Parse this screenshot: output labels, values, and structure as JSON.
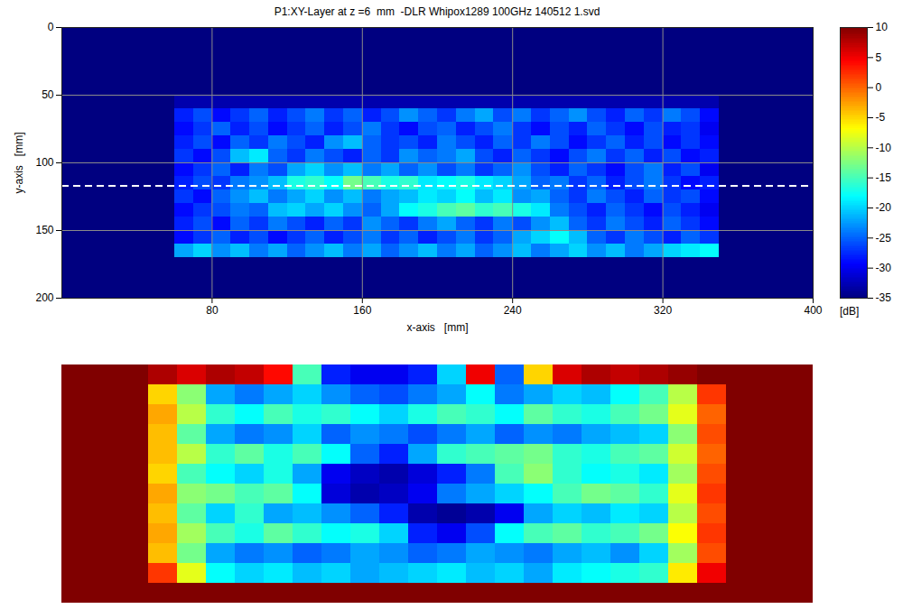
{
  "chart_data": [
    {
      "type": "heatmap",
      "title": "P1:XY-Layer at z =6  mm  -DLR Whipox1289 100GHz 140512 1.svd",
      "xlabel": "x-axis   [mm]",
      "ylabel": "y-axis   [mm]",
      "xlim": [
        0,
        400
      ],
      "ylim": [
        0,
        200
      ],
      "xticks": [
        80,
        160,
        240,
        320,
        400
      ],
      "yticks": [
        0,
        50,
        100,
        150,
        200
      ],
      "grid": true,
      "x_bins": [
        0,
        10,
        20,
        30,
        40,
        50,
        60,
        70,
        80,
        90,
        100,
        110,
        120,
        130,
        140,
        150,
        160,
        170,
        180,
        190,
        200,
        210,
        220,
        230,
        240,
        250,
        260,
        270,
        280,
        290,
        300,
        310,
        320,
        330,
        340,
        350,
        360,
        370,
        380,
        390,
        400
      ],
      "y_bins": [
        0,
        10,
        20,
        30,
        40,
        50,
        60,
        70,
        80,
        90,
        100,
        110,
        120,
        130,
        140,
        150,
        160,
        170,
        180,
        190,
        200
      ],
      "cells": [
        [
          -35,
          -35,
          -35,
          -35,
          -35,
          -35,
          -35,
          -35,
          -35,
          -35,
          -35,
          -35,
          -35,
          -35,
          -35,
          -35,
          -35,
          -35,
          -35,
          -35,
          -35,
          -35,
          -35,
          -35,
          -35,
          -35,
          -35,
          -35,
          -35,
          -35,
          -35,
          -35,
          -35,
          -35,
          -35,
          -35,
          -35,
          -35,
          -35,
          -35
        ],
        [
          -35,
          -35,
          -35,
          -35,
          -35,
          -35,
          -35,
          -35,
          -35,
          -35,
          -35,
          -35,
          -35,
          -35,
          -35,
          -35,
          -35,
          -35,
          -35,
          -35,
          -35,
          -35,
          -35,
          -35,
          -35,
          -35,
          -35,
          -35,
          -35,
          -35,
          -35,
          -35,
          -35,
          -35,
          -35,
          -35,
          -35,
          -35,
          -35,
          -35
        ],
        [
          -35,
          -35,
          -35,
          -35,
          -35,
          -35,
          -35,
          -35,
          -35,
          -35,
          -35,
          -35,
          -35,
          -35,
          -35,
          -35,
          -35,
          -35,
          -35,
          -35,
          -35,
          -35,
          -35,
          -35,
          -35,
          -35,
          -35,
          -35,
          -35,
          -35,
          -35,
          -35,
          -35,
          -35,
          -35,
          -35,
          -35,
          -35,
          -35,
          -35
        ],
        [
          -35,
          -35,
          -35,
          -35,
          -35,
          -35,
          -35,
          -35,
          -35,
          -35,
          -35,
          -35,
          -35,
          -35,
          -35,
          -35,
          -35,
          -35,
          -35,
          -35,
          -35,
          -35,
          -35,
          -35,
          -35,
          -35,
          -35,
          -35,
          -35,
          -35,
          -35,
          -35,
          -35,
          -35,
          -35,
          -35,
          -35,
          -35,
          -35,
          -35
        ],
        [
          -35,
          -35,
          -35,
          -35,
          -35,
          -35,
          -35,
          -35,
          -35,
          -35,
          -35,
          -35,
          -35,
          -35,
          -35,
          -35,
          -35,
          -35,
          -35,
          -35,
          -35,
          -35,
          -35,
          -35,
          -35,
          -35,
          -35,
          -35,
          -35,
          -35,
          -35,
          -35,
          -35,
          -35,
          -35,
          -35,
          -35,
          -35,
          -35,
          -35
        ],
        [
          -35,
          -35,
          -35,
          -35,
          -35,
          -35,
          -33,
          -33,
          -33,
          -33,
          -33,
          -33,
          -33,
          -33,
          -33,
          -33,
          -33,
          -33,
          -33,
          -33,
          -33,
          -33,
          -33,
          -33,
          -33,
          -33,
          -33,
          -33,
          -33,
          -33,
          -33,
          -33,
          -33,
          -33,
          -33,
          -35,
          -35,
          -35,
          -35,
          -35
        ],
        [
          -35,
          -35,
          -35,
          -35,
          -35,
          -35,
          -28,
          -26,
          -29,
          -27,
          -25,
          -28,
          -26,
          -24,
          -27,
          -25,
          -28,
          -26,
          -23,
          -25,
          -27,
          -24,
          -22,
          -26,
          -24,
          -27,
          -25,
          -23,
          -26,
          -28,
          -25,
          -27,
          -24,
          -26,
          -29,
          -35,
          -35,
          -35,
          -35,
          -35
        ],
        [
          -35,
          -35,
          -35,
          -35,
          -35,
          -35,
          -29,
          -27,
          -25,
          -28,
          -26,
          -29,
          -27,
          -25,
          -28,
          -26,
          -24,
          -27,
          -29,
          -26,
          -25,
          -28,
          -26,
          -24,
          -27,
          -29,
          -26,
          -28,
          -25,
          -27,
          -29,
          -26,
          -28,
          -27,
          -30,
          -35,
          -35,
          -35,
          -35,
          -35
        ],
        [
          -35,
          -35,
          -35,
          -35,
          -35,
          -35,
          -28,
          -26,
          -29,
          -25,
          -27,
          -24,
          -26,
          -28,
          -23,
          -21,
          -25,
          -27,
          -26,
          -28,
          -24,
          -26,
          -28,
          -25,
          -27,
          -24,
          -26,
          -29,
          -27,
          -25,
          -28,
          -26,
          -29,
          -27,
          -29,
          -35,
          -35,
          -35,
          -35,
          -35
        ],
        [
          -35,
          -35,
          -35,
          -35,
          -35,
          -35,
          -27,
          -29,
          -26,
          -21,
          -19,
          -25,
          -27,
          -24,
          -26,
          -28,
          -25,
          -27,
          -23,
          -25,
          -24,
          -22,
          -26,
          -28,
          -25,
          -27,
          -29,
          -26,
          -24,
          -27,
          -25,
          -28,
          -26,
          -29,
          -28,
          -35,
          -35,
          -35,
          -35,
          -35
        ],
        [
          -35,
          -35,
          -35,
          -35,
          -35,
          -35,
          -29,
          -27,
          -25,
          -28,
          -24,
          -26,
          -22,
          -20,
          -23,
          -21,
          -24,
          -22,
          -25,
          -23,
          -26,
          -24,
          -27,
          -25,
          -23,
          -26,
          -28,
          -25,
          -27,
          -29,
          -26,
          -24,
          -28,
          -26,
          -30,
          -35,
          -35,
          -35,
          -35,
          -35
        ],
        [
          -35,
          -35,
          -35,
          -35,
          -35,
          -35,
          -28,
          -26,
          -27,
          -24,
          -23,
          -21,
          -17,
          -16,
          -18,
          -13,
          -15,
          -17,
          -16,
          -19,
          -18,
          -17,
          -19,
          -20,
          -22,
          -25,
          -24,
          -27,
          -25,
          -28,
          -26,
          -24,
          -27,
          -29,
          -28,
          -35,
          -35,
          -35,
          -35,
          -35
        ],
        [
          -35,
          -35,
          -35,
          -35,
          -35,
          -35,
          -27,
          -29,
          -25,
          -23,
          -21,
          -24,
          -22,
          -20,
          -23,
          -21,
          -24,
          -22,
          -21,
          -19,
          -20,
          -18,
          -21,
          -19,
          -23,
          -22,
          -25,
          -27,
          -24,
          -26,
          -28,
          -25,
          -27,
          -26,
          -29,
          -35,
          -35,
          -35,
          -35,
          -35
        ],
        [
          -35,
          -35,
          -35,
          -35,
          -35,
          -35,
          -29,
          -27,
          -26,
          -24,
          -25,
          -21,
          -20,
          -22,
          -20,
          -23,
          -25,
          -22,
          -18,
          -17,
          -15,
          -14,
          -16,
          -15,
          -17,
          -19,
          -24,
          -26,
          -28,
          -25,
          -27,
          -29,
          -26,
          -28,
          -30,
          -35,
          -35,
          -35,
          -35,
          -35
        ],
        [
          -35,
          -35,
          -35,
          -35,
          -35,
          -35,
          -28,
          -26,
          -29,
          -25,
          -27,
          -24,
          -26,
          -28,
          -25,
          -27,
          -23,
          -25,
          -27,
          -24,
          -22,
          -25,
          -27,
          -24,
          -26,
          -23,
          -21,
          -25,
          -27,
          -24,
          -26,
          -28,
          -25,
          -27,
          -29,
          -35,
          -35,
          -35,
          -35,
          -35
        ],
        [
          -35,
          -35,
          -35,
          -35,
          -35,
          -35,
          -29,
          -27,
          -25,
          -28,
          -26,
          -29,
          -27,
          -25,
          -28,
          -26,
          -24,
          -27,
          -25,
          -28,
          -26,
          -24,
          -27,
          -25,
          -22,
          -20,
          -18,
          -21,
          -25,
          -27,
          -24,
          -26,
          -28,
          -25,
          -27,
          -35,
          -35,
          -35,
          -35,
          -35
        ],
        [
          -35,
          -35,
          -35,
          -35,
          -35,
          -35,
          -22,
          -20,
          -23,
          -21,
          -24,
          -22,
          -25,
          -23,
          -21,
          -24,
          -22,
          -25,
          -23,
          -21,
          -24,
          -22,
          -25,
          -23,
          -21,
          -24,
          -22,
          -20,
          -23,
          -21,
          -24,
          -22,
          -20,
          -19,
          -18,
          -35,
          -35,
          -35,
          -35,
          -35
        ],
        [
          -35,
          -35,
          -35,
          -35,
          -35,
          -35,
          -35,
          -35,
          -35,
          -35,
          -35,
          -35,
          -35,
          -35,
          -35,
          -35,
          -35,
          -35,
          -35,
          -35,
          -35,
          -35,
          -35,
          -35,
          -35,
          -35,
          -35,
          -35,
          -35,
          -35,
          -35,
          -35,
          -35,
          -35,
          -35,
          -35,
          -35,
          -35,
          -35,
          -35
        ],
        [
          -35,
          -35,
          -35,
          -35,
          -35,
          -35,
          -35,
          -35,
          -35,
          -35,
          -35,
          -35,
          -35,
          -35,
          -35,
          -35,
          -35,
          -35,
          -35,
          -35,
          -35,
          -35,
          -35,
          -35,
          -35,
          -35,
          -35,
          -35,
          -35,
          -35,
          -35,
          -35,
          -35,
          -35,
          -35,
          -35,
          -35,
          -35,
          -35,
          -35
        ],
        [
          -35,
          -35,
          -35,
          -35,
          -35,
          -35,
          -35,
          -35,
          -35,
          -35,
          -35,
          -35,
          -35,
          -35,
          -35,
          -35,
          -35,
          -35,
          -35,
          -35,
          -35,
          -35,
          -35,
          -35,
          -35,
          -35,
          -35,
          -35,
          -35,
          -35,
          -35,
          -35,
          -35,
          -35,
          -35,
          -35,
          -35,
          -35,
          -35,
          -35
        ]
      ],
      "colorbar": {
        "label": "[dB]",
        "lim": [
          -35,
          10
        ],
        "ticks": [
          10,
          5,
          0,
          -5,
          -10,
          -15,
          -20,
          -25,
          -30,
          -35
        ]
      },
      "annotations": [
        {
          "y": 117,
          "color": "white",
          "line_style": "dashed"
        }
      ]
    },
    {
      "type": "heatmap",
      "tick_labels": false,
      "zlim": [
        -35,
        10
      ],
      "cells": [
        [
          10,
          10,
          10,
          8,
          6,
          8,
          7,
          4,
          -15,
          -28,
          -30,
          -30,
          -28,
          -20,
          5,
          -25,
          -5,
          6,
          8,
          7,
          8,
          9,
          10,
          10,
          10,
          10
        ],
        [
          10,
          10,
          10,
          -5,
          -12,
          -22,
          -24,
          -22,
          -20,
          -23,
          -25,
          -26,
          -24,
          -22,
          -18,
          -24,
          -22,
          -20,
          -21,
          -18,
          -15,
          -10,
          2,
          10,
          10,
          10
        ],
        [
          10,
          10,
          10,
          -3,
          -10,
          -16,
          -18,
          -15,
          -17,
          -16,
          -18,
          -20,
          -17,
          -15,
          -16,
          -18,
          -14,
          -16,
          -17,
          -15,
          -13,
          -8,
          0,
          10,
          10,
          10
        ],
        [
          10,
          10,
          10,
          -4,
          -14,
          -22,
          -24,
          -23,
          -20,
          -25,
          -23,
          -24,
          -26,
          -24,
          -22,
          -25,
          -23,
          -24,
          -22,
          -21,
          -20,
          -12,
          1,
          10,
          10,
          10
        ],
        [
          10,
          10,
          10,
          -4,
          -10,
          -16,
          -14,
          -17,
          -15,
          -18,
          -25,
          -28,
          -22,
          -16,
          -15,
          -14,
          -13,
          -16,
          -17,
          -15,
          -14,
          -9,
          0,
          10,
          10,
          10
        ],
        [
          10,
          10,
          10,
          -5,
          -15,
          -18,
          -20,
          -17,
          -22,
          -30,
          -32,
          -33,
          -31,
          -28,
          -24,
          -15,
          -12,
          -16,
          -18,
          -17,
          -19,
          -11,
          1,
          10,
          10,
          10
        ],
        [
          10,
          10,
          10,
          -3,
          -12,
          -13,
          -15,
          -14,
          -18,
          -31,
          -33,
          -32,
          -30,
          -24,
          -22,
          -20,
          -18,
          -15,
          -13,
          -14,
          -16,
          -8,
          2,
          10,
          10,
          10
        ],
        [
          10,
          10,
          10,
          -4,
          -14,
          -20,
          -16,
          -22,
          -21,
          -23,
          -25,
          -28,
          -33,
          -34,
          -33,
          -30,
          -22,
          -20,
          -21,
          -19,
          -20,
          -10,
          1,
          10,
          10,
          10
        ],
        [
          10,
          10,
          10,
          -3,
          -11,
          -15,
          -17,
          -14,
          -16,
          -18,
          -17,
          -20,
          -28,
          -30,
          -26,
          -18,
          -15,
          -14,
          -16,
          -15,
          -13,
          -7,
          2,
          10,
          10,
          10
        ],
        [
          10,
          10,
          10,
          -4,
          -13,
          -22,
          -24,
          -23,
          -25,
          -24,
          -22,
          -23,
          -25,
          -24,
          -22,
          -23,
          -24,
          -22,
          -21,
          -23,
          -20,
          -11,
          1,
          10,
          10,
          10
        ],
        [
          10,
          10,
          10,
          2,
          -8,
          -18,
          -20,
          -19,
          -21,
          -20,
          -22,
          -21,
          -20,
          -19,
          -21,
          -20,
          -22,
          -19,
          -18,
          -17,
          -16,
          -6,
          5,
          10,
          10,
          10
        ],
        [
          10,
          10,
          10,
          10,
          10,
          10,
          10,
          10,
          10,
          10,
          10,
          10,
          10,
          10,
          10,
          10,
          10,
          10,
          10,
          10,
          10,
          10,
          10,
          10,
          10,
          10
        ]
      ]
    }
  ]
}
